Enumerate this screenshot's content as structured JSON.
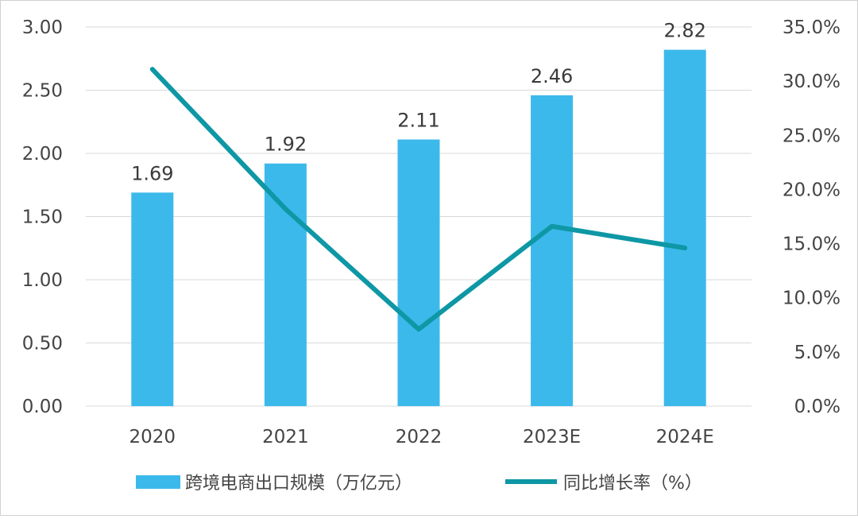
{
  "chart_data": {
    "type": "bar+line",
    "categories": [
      "2020",
      "2021",
      "2022",
      "2023E",
      "2024E"
    ],
    "series": [
      {
        "name": "跨境电商出口规模（万亿元）",
        "type": "bar",
        "axis": "left",
        "color": "#3cb9eb",
        "values": [
          1.69,
          1.92,
          2.11,
          2.46,
          2.82
        ],
        "data_labels": [
          "1.69",
          "1.92",
          "2.11",
          "2.46",
          "2.82"
        ]
      },
      {
        "name": "同比增长率（%）",
        "type": "line",
        "axis": "right",
        "color": "#0e97a5",
        "values": [
          31.1,
          18.2,
          7.1,
          16.6,
          14.6
        ]
      }
    ],
    "y_left": {
      "ylim": [
        0,
        3
      ],
      "ticks": [
        0,
        0.5,
        1,
        1.5,
        2,
        2.5,
        3
      ],
      "tick_labels": [
        "0.00",
        "0.50",
        "1.00",
        "1.50",
        "2.00",
        "2.50",
        "3.00"
      ]
    },
    "y_right": {
      "ylim": [
        0,
        35
      ],
      "ticks": [
        0,
        5,
        10,
        15,
        20,
        25,
        30,
        35
      ],
      "tick_labels": [
        "0.0%",
        "5.0%",
        "10.0%",
        "15.0%",
        "20.0%",
        "25.0%",
        "30.0%",
        "35.0%"
      ]
    },
    "grid": true,
    "legend_position": "bottom",
    "gridline_color": "#d9d9d9"
  }
}
